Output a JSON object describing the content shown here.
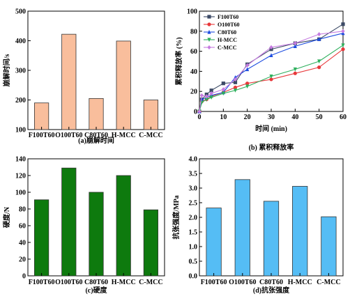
{
  "chart_data": [
    {
      "type": "bar",
      "caption": "(a)崩解时间",
      "ylabel": "崩解时间/s",
      "xlabel": "",
      "categories": [
        "F100T60",
        "O100T60",
        "C80T60",
        "H-MCC",
        "C-MCC"
      ],
      "values": [
        190,
        422,
        205,
        399,
        200
      ],
      "ylim": [
        100,
        500
      ],
      "yticks": [
        100,
        200,
        300,
        400,
        500
      ],
      "bar_color": "#F9BE9C",
      "grid": false
    },
    {
      "type": "line",
      "caption": "(b) 累积释放率",
      "ylabel": "累积释放率 (%)",
      "xlabel": "时间 (min)",
      "xlim": [
        0,
        60
      ],
      "ylim": [
        0,
        100
      ],
      "xticks": [
        0,
        10,
        20,
        30,
        40,
        50,
        60
      ],
      "yticks": [
        0,
        20,
        40,
        60,
        80,
        100
      ],
      "legend_position": "top-left",
      "grid": false,
      "series": [
        {
          "name": "F100T60",
          "color": "#3C4A66",
          "marker": "square",
          "x": [
            0,
            1,
            3,
            5,
            10,
            15,
            20,
            30,
            40,
            50,
            60
          ],
          "y": [
            0,
            12,
            17,
            21,
            28,
            29,
            47,
            62,
            68,
            72,
            87
          ]
        },
        {
          "name": "O100T60",
          "color": "#E8373A",
          "marker": "circle",
          "x": [
            0,
            1,
            3,
            5,
            10,
            15,
            20,
            30,
            40,
            50,
            60
          ],
          "y": [
            0,
            10,
            12,
            15,
            19,
            24,
            28,
            32,
            38,
            44,
            62
          ]
        },
        {
          "name": "C80T60",
          "color": "#1E4DE0",
          "marker": "triangle-up",
          "x": [
            0,
            1,
            3,
            5,
            10,
            15,
            20,
            30,
            40,
            50,
            60
          ],
          "y": [
            0,
            12,
            14,
            16,
            19,
            34,
            42,
            56,
            65,
            72,
            78
          ]
        },
        {
          "name": "H-MCC",
          "color": "#2DAF5C",
          "marker": "triangle-down",
          "x": [
            0,
            1,
            3,
            5,
            10,
            15,
            20,
            30,
            40,
            50,
            60
          ],
          "y": [
            0,
            9,
            12,
            14,
            18,
            21,
            25,
            35,
            42,
            50,
            66
          ]
        },
        {
          "name": "C-MCC",
          "color": "#C57BE0",
          "marker": "diamond",
          "x": [
            0,
            1,
            3,
            5,
            10,
            15,
            20,
            30,
            40,
            50,
            60
          ],
          "y": [
            0,
            16,
            15,
            18,
            22,
            32,
            46,
            64,
            68,
            77,
            80
          ]
        }
      ]
    },
    {
      "type": "bar",
      "caption": "(c)硬度",
      "ylabel": "硬度/N",
      "xlabel": "",
      "categories": [
        "F100T60",
        "O100T60",
        "C80T60",
        "H-MCC",
        "C-MCC"
      ],
      "values": [
        91,
        129,
        100,
        120,
        79
      ],
      "ylim": [
        0,
        140
      ],
      "yticks": [
        0,
        20,
        40,
        60,
        80,
        100,
        120,
        140
      ],
      "bar_color": "#0E7A0E",
      "grid": false
    },
    {
      "type": "bar",
      "caption": "(d)抗张强度",
      "ylabel": "抗张强度/MPa",
      "xlabel": "",
      "categories": [
        "F100T60",
        "O100T60",
        "C80T60",
        "H-MCC",
        "C-MCC"
      ],
      "values": [
        2.32,
        3.29,
        2.55,
        3.06,
        2.02
      ],
      "ylim": [
        0,
        4.0
      ],
      "yticks": [
        0.0,
        0.5,
        1.0,
        1.5,
        2.0,
        2.5,
        3.0,
        3.5,
        4.0
      ],
      "ytick_decimals": 1,
      "bar_color": "#55BDF5",
      "grid": false
    }
  ]
}
